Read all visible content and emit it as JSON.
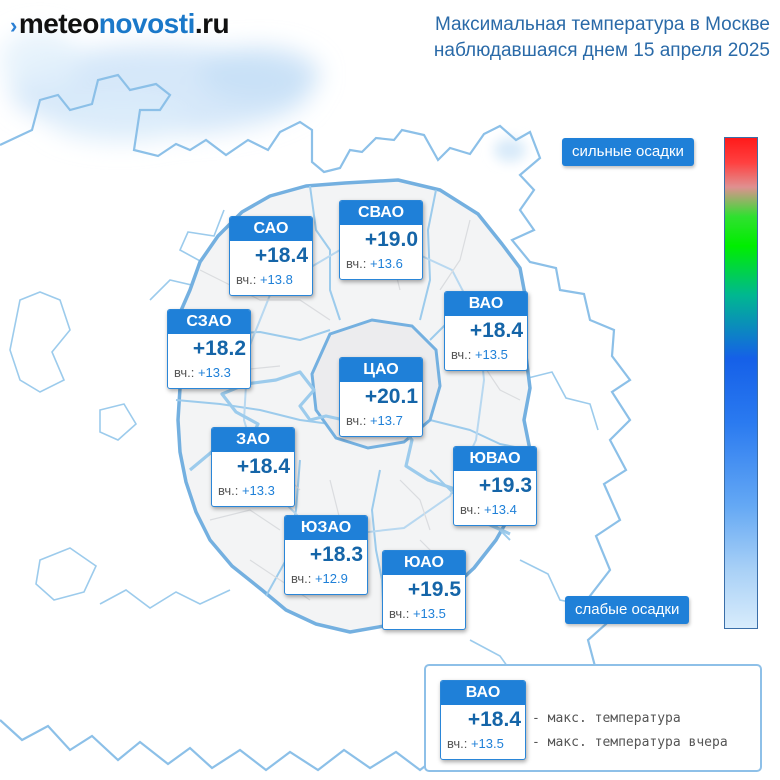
{
  "logo": {
    "dark": "meteo",
    "blue": "novosti",
    "suffix": ".ru"
  },
  "title": {
    "line1": "Максимальная температура в Москве",
    "line2": "наблюдавшаяся днем 15 апреля 2025"
  },
  "districts": [
    {
      "name": "САО",
      "temp": "+18.4",
      "yesterday_label": "вч.:",
      "yesterday": "+13.8"
    },
    {
      "name": "СВАО",
      "temp": "+19.0",
      "yesterday_label": "вч.:",
      "yesterday": "+13.6"
    },
    {
      "name": "ВАО",
      "temp": "+18.4",
      "yesterday_label": "вч.:",
      "yesterday": "+13.5"
    },
    {
      "name": "СЗАО",
      "temp": "+18.2",
      "yesterday_label": "вч.:",
      "yesterday": "+13.3"
    },
    {
      "name": "ЦАО",
      "temp": "+20.1",
      "yesterday_label": "вч.:",
      "yesterday": "+13.7"
    },
    {
      "name": "ЗАО",
      "temp": "+18.4",
      "yesterday_label": "вч.:",
      "yesterday": "+13.3"
    },
    {
      "name": "ЮВАО",
      "temp": "+19.3",
      "yesterday_label": "вч.:",
      "yesterday": "+13.4"
    },
    {
      "name": "ЮЗАО",
      "temp": "+18.3",
      "yesterday_label": "вч.:",
      "yesterday": "+12.9"
    },
    {
      "name": "ЮАО",
      "temp": "+19.5",
      "yesterday_label": "вч.:",
      "yesterday": "+13.5"
    }
  ],
  "scale": {
    "top_label": "сильные осадки",
    "bottom_label": "слабые осадки"
  },
  "legend": {
    "example": {
      "name": "ВАО",
      "temp": "+18.4",
      "yesterday_label": "вч.:",
      "yesterday": "+13.5"
    },
    "line1": "- макс. температура",
    "line2": "- макс. температура вчера"
  },
  "colors": {
    "accent": "#1f80d8",
    "map_outline": "#74b0e0",
    "title": "#2a6aa8"
  }
}
